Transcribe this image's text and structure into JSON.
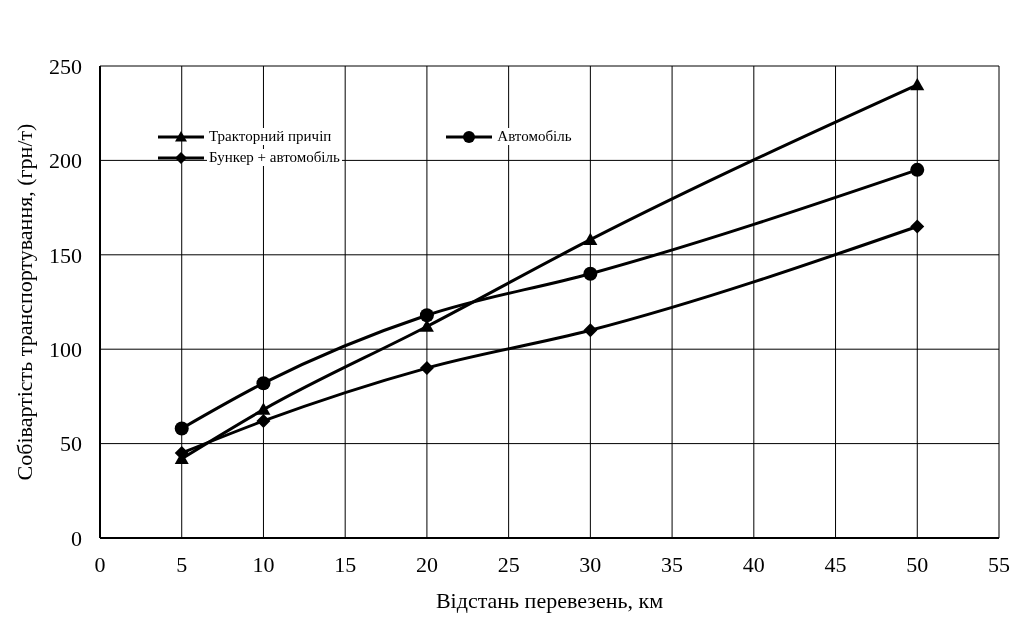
{
  "chart_data": {
    "type": "line",
    "xlabel": "Відстань перевезень, км",
    "ylabel": "Собівартість транспортування, (грн/т)",
    "x": [
      5,
      10,
      20,
      30,
      50
    ],
    "series": [
      {
        "name": "Тракторний причіп",
        "color": "#000000",
        "marker": "triangle",
        "values": [
          42,
          68,
          112,
          158,
          240
        ]
      },
      {
        "name": "Автомобіль",
        "color": "#000000",
        "marker": "circle",
        "values": [
          58,
          82,
          118,
          140,
          195
        ]
      },
      {
        "name": "Бункер + автомобіль",
        "color": "#000000",
        "marker": "diamond",
        "values": [
          45,
          62,
          90,
          110,
          165
        ]
      }
    ],
    "xlim": [
      0,
      55
    ],
    "xticks": [
      0,
      5,
      10,
      15,
      20,
      25,
      30,
      35,
      40,
      45,
      50,
      55
    ],
    "ylim": [
      0,
      250
    ],
    "yticks": [
      0,
      50,
      100,
      150,
      200,
      250
    ],
    "grid": true,
    "legend": "top left",
    "line_style": "solid"
  }
}
